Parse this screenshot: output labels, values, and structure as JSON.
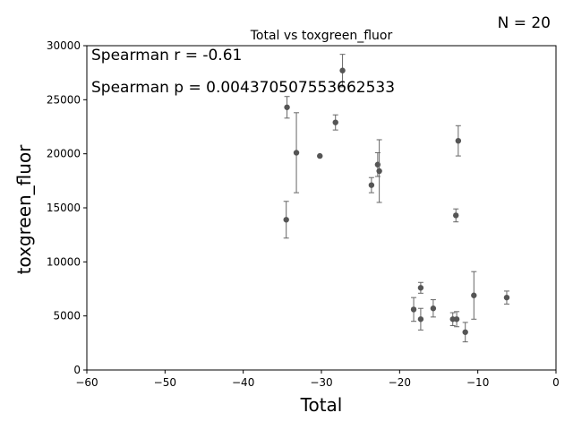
{
  "chart_data": {
    "type": "scatter",
    "title": "Total vs toxgreen_fluor",
    "xlabel": "Total",
    "ylabel": "toxgreen_fluor",
    "xlim": [
      -60,
      0
    ],
    "ylim": [
      0,
      30000
    ],
    "xticks": [
      -60,
      -50,
      -40,
      -30,
      -20,
      -10,
      0
    ],
    "yticks": [
      0,
      5000,
      10000,
      15000,
      20000,
      25000,
      30000
    ],
    "grid": false,
    "annotations": {
      "n": "N = 20",
      "spearman_r": "Spearman r = -0.61",
      "spearman_p": "Spearman p = 0.004370507553662533"
    },
    "points": [
      {
        "x": -34.4,
        "y": 24300,
        "err": 1000
      },
      {
        "x": -34.5,
        "y": 13900,
        "err": 1700
      },
      {
        "x": -33.2,
        "y": 20100,
        "err": 3700
      },
      {
        "x": -30.2,
        "y": 19800,
        "err": 0
      },
      {
        "x": -28.2,
        "y": 22900,
        "err": 700
      },
      {
        "x": -27.3,
        "y": 27700,
        "err": 1500
      },
      {
        "x": -23.6,
        "y": 17100,
        "err": 700
      },
      {
        "x": -22.8,
        "y": 19000,
        "err": 1100
      },
      {
        "x": -22.6,
        "y": 18400,
        "err": 2900
      },
      {
        "x": -18.2,
        "y": 5600,
        "err": 1100
      },
      {
        "x": -17.3,
        "y": 7600,
        "err": 500
      },
      {
        "x": -17.3,
        "y": 4700,
        "err": 1000
      },
      {
        "x": -15.7,
        "y": 5700,
        "err": 800
      },
      {
        "x": -13.2,
        "y": 4700,
        "err": 600
      },
      {
        "x": -12.8,
        "y": 14300,
        "err": 600
      },
      {
        "x": -12.7,
        "y": 4700,
        "err": 700
      },
      {
        "x": -12.5,
        "y": 21200,
        "err": 1400
      },
      {
        "x": -11.6,
        "y": 3500,
        "err": 900
      },
      {
        "x": -10.5,
        "y": 6900,
        "err": 2200
      },
      {
        "x": -6.3,
        "y": 6700,
        "err": 600
      }
    ]
  }
}
